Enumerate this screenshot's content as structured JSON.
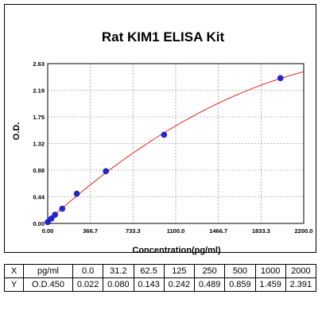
{
  "chart_data": {
    "type": "scatter",
    "title": "Rat KIM1 ELISA Kit",
    "xlabel": "Concentration(pg/ml)",
    "ylabel": "O.D.",
    "xlim": [
      0,
      2200
    ],
    "ylim": [
      0,
      2.63
    ],
    "x_ticks": [
      "0.00",
      "366.7",
      "733.3",
      "1100.0",
      "1466.7",
      "1833.3",
      "2200.0"
    ],
    "y_ticks": [
      "0.00",
      "0.44",
      "0.88",
      "1.32",
      "1.75",
      "2.19",
      "2.63"
    ],
    "grid": "dashed vertical and horizontal",
    "points": [
      {
        "x": 0,
        "y": 0.022
      },
      {
        "x": 31.2,
        "y": 0.08
      },
      {
        "x": 62.5,
        "y": 0.143
      },
      {
        "x": 125,
        "y": 0.242
      },
      {
        "x": 250,
        "y": 0.489
      },
      {
        "x": 500,
        "y": 0.859
      },
      {
        "x": 1000,
        "y": 1.459
      },
      {
        "x": 2000,
        "y": 2.391
      }
    ],
    "colors": {
      "points": "#2424d6",
      "curve": "#e8201c",
      "grid": "#7a7a7a"
    }
  },
  "table": {
    "rows": [
      [
        "X",
        "pg/ml",
        "0.0",
        "31.2",
        "62.5",
        "125",
        "250",
        "500",
        "1000",
        "2000"
      ],
      [
        "Y",
        "O.D.450",
        "0.022",
        "0.080",
        "0.143",
        "0.242",
        "0.489",
        "0.859",
        "1.459",
        "2.391"
      ]
    ]
  }
}
